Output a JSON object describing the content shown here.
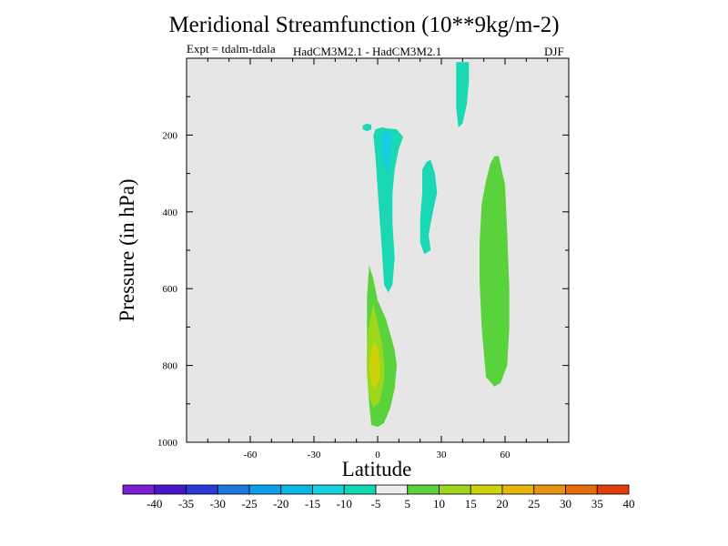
{
  "chart_data": {
    "type": "contour",
    "title": "Meridional Streamfunction (10**9kg/m-2)",
    "experiment_label": "Expt = tdalm-tdala",
    "models_label": "HadCM3M2.1 - HadCM3M2.1",
    "season_label": "DJF",
    "xlabel": "Latitude",
    "ylabel": "Pressure (in hPa)",
    "xlim": [
      -90,
      90
    ],
    "ylim": [
      1000,
      0
    ],
    "x_ticks": [
      -60,
      -30,
      0,
      30,
      60
    ],
    "x_tick_labels": [
      "-60",
      "-30",
      "0",
      "30",
      "60"
    ],
    "y_ticks": [
      200,
      400,
      600,
      800,
      1000
    ],
    "y_tick_labels": [
      "200",
      "400",
      "600",
      "800",
      "1000"
    ],
    "background_color": "#e6e6e6",
    "colorbar": {
      "levels": [
        -40,
        -35,
        -30,
        -25,
        -20,
        -15,
        -10,
        -5,
        5,
        10,
        15,
        20,
        25,
        30,
        35,
        40
      ],
      "labels": [
        "-40",
        "-35",
        "-30",
        "-25",
        "-20",
        "-15",
        "-10",
        "-5",
        "5",
        "10",
        "15",
        "20",
        "25",
        "30",
        "35",
        "40"
      ],
      "colors": [
        "#7a1fd6",
        "#4a14cc",
        "#2a3ad8",
        "#1a78de",
        "#0c9ee6",
        "#0ab8e6",
        "#16d2e0",
        "#10d8b4",
        "#ececec",
        "#5ad23c",
        "#9ed61c",
        "#cdd20a",
        "#e6b40a",
        "#e69410",
        "#e66c0c",
        "#e23c0a"
      ]
    },
    "regions": [
      {
        "name": "cyan-blob-small",
        "level": -5,
        "color": "#1ad8b4",
        "outline": [
          [
            -5,
            170
          ],
          [
            -3,
            173
          ],
          [
            -3,
            185
          ],
          [
            -5,
            190
          ],
          [
            -7,
            185
          ],
          [
            -7,
            175
          ]
        ]
      },
      {
        "name": "cyan-band-equator",
        "level": -5,
        "color": "#1ad8b4",
        "outline": [
          [
            -1,
            185
          ],
          [
            2,
            180
          ],
          [
            5,
            183
          ],
          [
            9,
            185
          ],
          [
            12,
            205
          ],
          [
            10,
            235
          ],
          [
            8,
            290
          ],
          [
            7,
            350
          ],
          [
            7,
            430
          ],
          [
            8,
            520
          ],
          [
            7,
            590
          ],
          [
            5,
            610
          ],
          [
            3,
            590
          ],
          [
            2,
            500
          ],
          [
            1,
            420
          ],
          [
            0,
            340
          ],
          [
            -1,
            260
          ],
          [
            -2,
            200
          ]
        ]
      },
      {
        "name": "light-blue-core",
        "level": -10,
        "color": "#16cce0",
        "outline": [
          [
            2,
            195
          ],
          [
            5,
            190
          ],
          [
            7,
            205
          ],
          [
            6,
            260
          ],
          [
            5,
            300
          ],
          [
            3,
            280
          ],
          [
            2,
            240
          ]
        ]
      },
      {
        "name": "cyan-band-25N",
        "level": -5,
        "color": "#1ad8b4",
        "outline": [
          [
            21,
            290
          ],
          [
            23,
            270
          ],
          [
            25,
            265
          ],
          [
            27,
            300
          ],
          [
            28,
            350
          ],
          [
            26,
            400
          ],
          [
            24,
            460
          ],
          [
            25,
            500
          ],
          [
            22,
            510
          ],
          [
            20,
            480
          ],
          [
            20,
            420
          ],
          [
            21,
            350
          ]
        ]
      },
      {
        "name": "cyan-blob-40N",
        "level": -5,
        "color": "#1ad8b4",
        "outline": [
          [
            37,
            10
          ],
          [
            43,
            10
          ],
          [
            43,
            60
          ],
          [
            42,
            120
          ],
          [
            40,
            170
          ],
          [
            38,
            180
          ],
          [
            37,
            130
          ],
          [
            37,
            60
          ]
        ]
      },
      {
        "name": "green-column-55N",
        "level": 5,
        "color": "#5ad23c",
        "outline": [
          [
            53,
            275
          ],
          [
            55,
            255
          ],
          [
            57,
            255
          ],
          [
            60,
            330
          ],
          [
            61,
            450
          ],
          [
            62,
            600
          ],
          [
            62,
            700
          ],
          [
            61,
            800
          ],
          [
            58,
            845
          ],
          [
            55,
            855
          ],
          [
            51,
            830
          ],
          [
            49,
            700
          ],
          [
            48,
            580
          ],
          [
            48,
            480
          ],
          [
            49,
            380
          ],
          [
            51,
            320
          ]
        ]
      },
      {
        "name": "green-plume-equator",
        "level": 5,
        "color": "#5ad23c",
        "outline": [
          [
            -4,
            540
          ],
          [
            -2,
            575
          ],
          [
            0,
            630
          ],
          [
            4,
            680
          ],
          [
            6,
            720
          ],
          [
            8,
            760
          ],
          [
            9,
            800
          ],
          [
            8,
            860
          ],
          [
            6,
            910
          ],
          [
            3,
            950
          ],
          [
            0,
            960
          ],
          [
            -3,
            955
          ],
          [
            -4,
            900
          ],
          [
            -5,
            820
          ],
          [
            -5,
            720
          ],
          [
            -5,
            620
          ]
        ]
      },
      {
        "name": "yellow-green-core",
        "level": 10,
        "color": "#9ed61c",
        "outline": [
          [
            -2,
            640
          ],
          [
            0,
            690
          ],
          [
            2,
            740
          ],
          [
            3,
            790
          ],
          [
            3,
            840
          ],
          [
            1,
            895
          ],
          [
            -2,
            910
          ],
          [
            -4,
            880
          ],
          [
            -5,
            820
          ],
          [
            -5,
            740
          ],
          [
            -4,
            690
          ]
        ]
      },
      {
        "name": "yellow-core",
        "level": 15,
        "color": "#cdd20a",
        "outline": [
          [
            -2,
            740
          ],
          [
            0,
            755
          ],
          [
            1,
            790
          ],
          [
            1,
            830
          ],
          [
            -1,
            860
          ],
          [
            -3,
            850
          ],
          [
            -4,
            800
          ],
          [
            -3,
            760
          ]
        ]
      }
    ]
  }
}
